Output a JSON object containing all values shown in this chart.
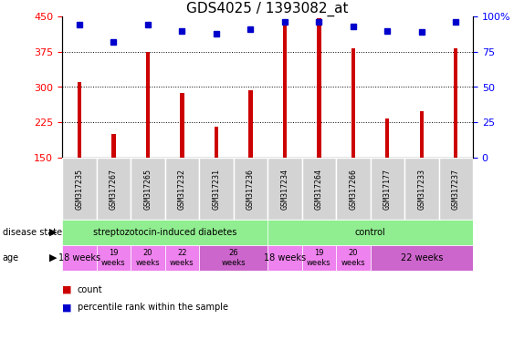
{
  "title": "GDS4025 / 1393082_at",
  "samples": [
    "GSM317235",
    "GSM317267",
    "GSM317265",
    "GSM317232",
    "GSM317231",
    "GSM317236",
    "GSM317234",
    "GSM317264",
    "GSM317266",
    "GSM317177",
    "GSM317233",
    "GSM317237"
  ],
  "counts": [
    310,
    200,
    375,
    287,
    215,
    293,
    440,
    447,
    383,
    233,
    248,
    383
  ],
  "percentiles": [
    94,
    82,
    94,
    90,
    88,
    91,
    96,
    96,
    93,
    90,
    89,
    96
  ],
  "ylim_left": [
    150,
    450
  ],
  "ylim_right": [
    0,
    100
  ],
  "yticks_left": [
    150,
    225,
    300,
    375,
    450
  ],
  "yticks_right": [
    0,
    25,
    50,
    75,
    100
  ],
  "bar_color": "#cc0000",
  "dot_color": "#0000cc",
  "age_defs": [
    {
      "label": "18 weeks",
      "indices": [
        0
      ],
      "color": "#ee82ee",
      "two_line": false
    },
    {
      "label": "19\nweeks",
      "indices": [
        1
      ],
      "color": "#ee82ee",
      "two_line": true
    },
    {
      "label": "20\nweeks",
      "indices": [
        2
      ],
      "color": "#ee82ee",
      "two_line": true
    },
    {
      "label": "22\nweeks",
      "indices": [
        3
      ],
      "color": "#ee82ee",
      "two_line": true
    },
    {
      "label": "26\nweeks",
      "indices": [
        4,
        5
      ],
      "color": "#cc66cc",
      "two_line": true
    },
    {
      "label": "18 weeks",
      "indices": [
        6
      ],
      "color": "#ee82ee",
      "two_line": false
    },
    {
      "label": "19\nweeks",
      "indices": [
        7
      ],
      "color": "#ee82ee",
      "two_line": true
    },
    {
      "label": "20\nweeks",
      "indices": [
        8
      ],
      "color": "#ee82ee",
      "two_line": true
    },
    {
      "label": "22 weeks",
      "indices": [
        9,
        10,
        11
      ],
      "color": "#cc66cc",
      "two_line": false
    }
  ],
  "disease_groups": [
    {
      "label": "streptozotocin-induced diabetes",
      "start": 0,
      "end": 6
    },
    {
      "label": "control",
      "start": 6,
      "end": 12
    }
  ],
  "grid_lines": [
    225,
    300,
    375
  ],
  "bar_width": 0.12,
  "marker_size": 4,
  "tick_fontsize": 8,
  "sample_fontsize": 6,
  "annot_fontsize": 7,
  "age_fontsize_small": 6,
  "age_fontsize_large": 7,
  "title_fontsize": 11,
  "gray_color": "#d3d3d3",
  "green_color": "#90ee90"
}
